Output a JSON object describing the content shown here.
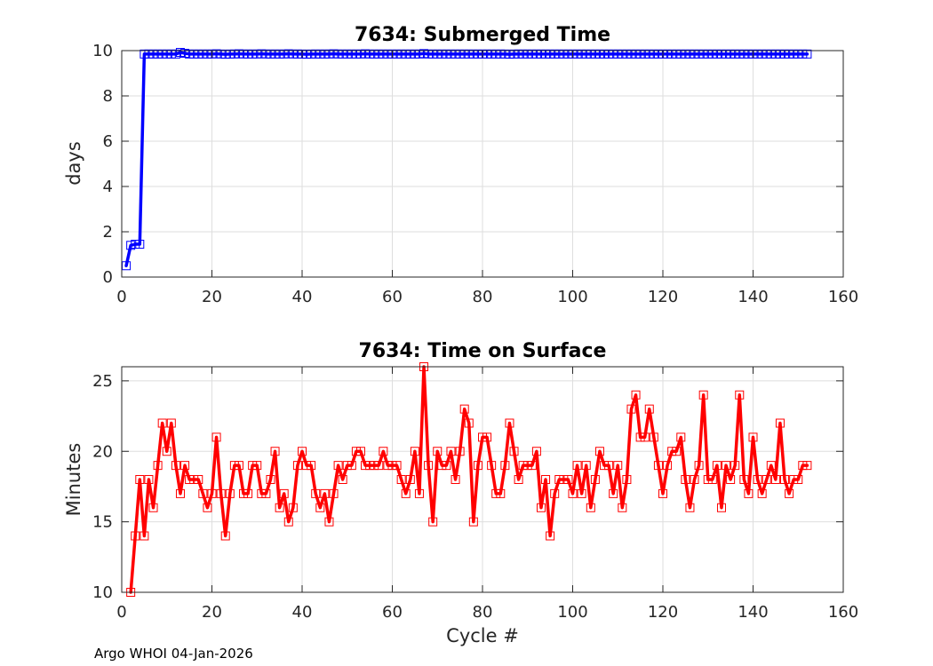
{
  "chart_data": [
    {
      "type": "line",
      "title": "7634: Submerged Time",
      "xlabel": "",
      "ylabel": "days",
      "xlim": [
        0,
        160
      ],
      "ylim": [
        0,
        10
      ],
      "xticks": [
        0,
        20,
        40,
        60,
        80,
        100,
        120,
        140,
        160
      ],
      "yticks": [
        0,
        2,
        4,
        6,
        8,
        10
      ],
      "grid": true,
      "line_color": "#0000ff",
      "marker": "square",
      "series": [
        {
          "x": [
            1,
            2,
            3,
            4,
            5,
            6,
            7,
            8,
            9,
            10,
            11,
            12,
            13,
            14,
            15,
            16,
            17,
            18,
            19,
            20,
            21,
            22,
            23,
            24,
            25,
            26,
            27,
            28,
            29,
            30,
            31,
            32,
            33,
            34,
            35,
            36,
            37,
            38,
            39,
            40,
            41,
            42,
            43,
            44,
            45,
            46,
            47,
            48,
            49,
            50,
            51,
            52,
            53,
            54,
            55,
            56,
            57,
            58,
            59,
            60,
            61,
            62,
            63,
            64,
            65,
            66,
            67,
            68,
            69,
            70,
            71,
            72,
            73,
            74,
            75,
            76,
            77,
            78,
            79,
            80,
            81,
            82,
            83,
            84,
            85,
            86,
            87,
            88,
            89,
            90,
            91,
            92,
            93,
            94,
            95,
            96,
            97,
            98,
            99,
            100,
            101,
            102,
            103,
            104,
            105,
            106,
            107,
            108,
            109,
            110,
            111,
            112,
            113,
            114,
            115,
            116,
            117,
            118,
            119,
            120,
            121,
            122,
            123,
            124,
            125,
            126,
            127,
            128,
            129,
            130,
            131,
            132,
            133,
            134,
            135,
            136,
            137,
            138,
            139,
            140,
            141,
            142,
            143,
            144,
            145,
            146,
            147,
            148,
            149,
            150,
            151,
            152
          ],
          "values": [
            0.5,
            1.4,
            1.45,
            1.45,
            9.85,
            9.85,
            9.85,
            9.85,
            9.85,
            9.85,
            9.85,
            9.85,
            9.92,
            9.88,
            9.85,
            9.85,
            9.85,
            9.85,
            9.85,
            9.85,
            9.86,
            9.85,
            9.84,
            9.85,
            9.85,
            9.86,
            9.85,
            9.85,
            9.85,
            9.85,
            9.86,
            9.85,
            9.85,
            9.85,
            9.85,
            9.85,
            9.86,
            9.85,
            9.85,
            9.85,
            9.84,
            9.85,
            9.85,
            9.85,
            9.85,
            9.85,
            9.86,
            9.85,
            9.85,
            9.85,
            9.85,
            9.85,
            9.85,
            9.86,
            9.85,
            9.85,
            9.85,
            9.85,
            9.85,
            9.85,
            9.85,
            9.85,
            9.85,
            9.85,
            9.85,
            9.85,
            9.87,
            9.85,
            9.85,
            9.85,
            9.85,
            9.85,
            9.85,
            9.85,
            9.85,
            9.85,
            9.85,
            9.85,
            9.85,
            9.85,
            9.85,
            9.85,
            9.85,
            9.85,
            9.85,
            9.84,
            9.85,
            9.85,
            9.85,
            9.85,
            9.85,
            9.85,
            9.85,
            9.85,
            9.85,
            9.85,
            9.85,
            9.85,
            9.85,
            9.85,
            9.85,
            9.85,
            9.85,
            9.85,
            9.85,
            9.85,
            9.85,
            9.85,
            9.85,
            9.85,
            9.85,
            9.85,
            9.85,
            9.85,
            9.85,
            9.85,
            9.85,
            9.85,
            9.85,
            9.85,
            9.85,
            9.85,
            9.85,
            9.85,
            9.85,
            9.85,
            9.85,
            9.85,
            9.85,
            9.85,
            9.85,
            9.85,
            9.85,
            9.85,
            9.85,
            9.85,
            9.85,
            9.85,
            9.85,
            9.85,
            9.85,
            9.85,
            9.85,
            9.85,
            9.85,
            9.85,
            9.85,
            9.85,
            9.85,
            9.85,
            9.85,
            9.85
          ]
        }
      ]
    },
    {
      "type": "line",
      "title": "7634: Time on Surface",
      "xlabel": "Cycle #",
      "ylabel": "Minutes",
      "xlim": [
        0,
        160
      ],
      "ylim": [
        10,
        26
      ],
      "xticks": [
        0,
        20,
        40,
        60,
        80,
        100,
        120,
        140,
        160
      ],
      "yticks": [
        10,
        15,
        20,
        25
      ],
      "grid": true,
      "line_color": "#ff0000",
      "marker": "square",
      "series": [
        {
          "x": [
            2,
            3,
            4,
            5,
            6,
            7,
            8,
            9,
            10,
            11,
            12,
            13,
            14,
            15,
            16,
            17,
            18,
            19,
            20,
            21,
            22,
            23,
            24,
            25,
            26,
            27,
            28,
            29,
            30,
            31,
            32,
            33,
            34,
            35,
            36,
            37,
            38,
            39,
            40,
            41,
            42,
            43,
            44,
            45,
            46,
            47,
            48,
            49,
            50,
            51,
            52,
            53,
            54,
            55,
            56,
            57,
            58,
            59,
            60,
            61,
            62,
            63,
            64,
            65,
            66,
            67,
            68,
            69,
            70,
            71,
            72,
            73,
            74,
            75,
            76,
            77,
            78,
            79,
            80,
            81,
            82,
            83,
            84,
            85,
            86,
            87,
            88,
            89,
            90,
            91,
            92,
            93,
            94,
            95,
            96,
            97,
            98,
            99,
            100,
            101,
            102,
            103,
            104,
            105,
            106,
            107,
            108,
            109,
            110,
            111,
            112,
            113,
            114,
            115,
            116,
            117,
            118,
            119,
            120,
            121,
            122,
            123,
            124,
            125,
            126,
            127,
            128,
            129,
            130,
            131,
            132,
            133,
            134,
            135,
            136,
            137,
            138,
            139,
            140,
            141,
            142,
            143,
            144,
            145,
            146,
            147,
            148,
            149,
            150,
            151,
            152
          ],
          "values": [
            10,
            14,
            18,
            14,
            18,
            16,
            19,
            22,
            20,
            22,
            19,
            17,
            19,
            18,
            18,
            18,
            17,
            16,
            17,
            21,
            17,
            14,
            17,
            19,
            19,
            17,
            17,
            19,
            19,
            17,
            17,
            18,
            20,
            16,
            17,
            15,
            16,
            19,
            20,
            19,
            19,
            17,
            16,
            17,
            15,
            17,
            19,
            18,
            19,
            19,
            20,
            20,
            19,
            19,
            19,
            19,
            20,
            19,
            19,
            19,
            18,
            17,
            18,
            20,
            17,
            26,
            19,
            15,
            20,
            19,
            19,
            20,
            18,
            20,
            23,
            22,
            15,
            19,
            21,
            21,
            19,
            17,
            17,
            19,
            22,
            20,
            18,
            19,
            19,
            19,
            20,
            16,
            18,
            14,
            17,
            18,
            18,
            18,
            17,
            19,
            17,
            19,
            16,
            18,
            20,
            19,
            19,
            17,
            19,
            16,
            18,
            23,
            24,
            21,
            21,
            23,
            21,
            19,
            17,
            19,
            20,
            20,
            21,
            18,
            16,
            18,
            19,
            24,
            18,
            18,
            19,
            16,
            19,
            18,
            19,
            24,
            18,
            17,
            21,
            18,
            17,
            18,
            19,
            18,
            22,
            18,
            17,
            18,
            18,
            19,
            19
          ]
        }
      ]
    }
  ],
  "footer": "Argo WHOI 04-Jan-2026"
}
